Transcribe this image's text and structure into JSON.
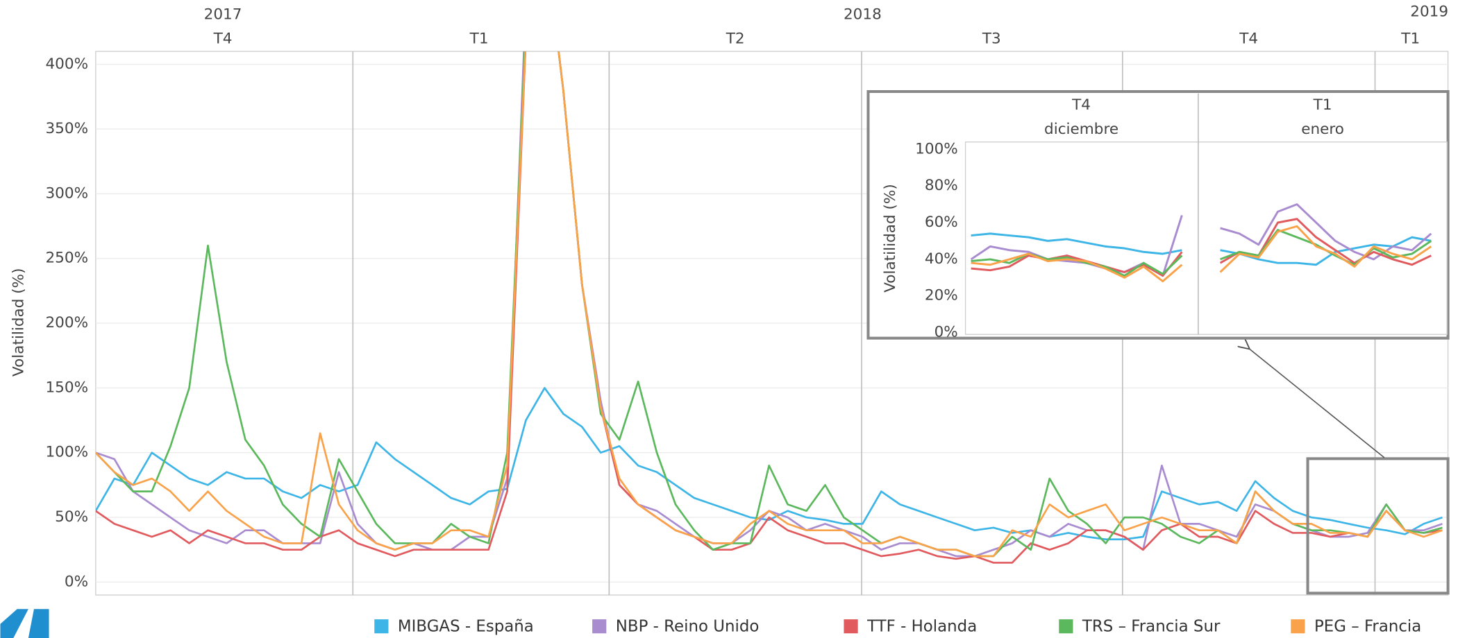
{
  "chart_data": [
    {
      "type": "line",
      "y_label": "Volatilidad (%)",
      "years": [
        "2017",
        "2018",
        "2019"
      ],
      "periods": [
        "T4",
        "T1",
        "T2",
        "T3",
        "T4",
        "T1"
      ],
      "categories": [
        null,
        null,
        null,
        null,
        null,
        null,
        null,
        null,
        null,
        null,
        null,
        null,
        null,
        null,
        null,
        null,
        null,
        null,
        null,
        null,
        null,
        null,
        null,
        null,
        null,
        null,
        null,
        null,
        null,
        null,
        null,
        null,
        null,
        null,
        null,
        null,
        null,
        null,
        null,
        null,
        null,
        null,
        null,
        null,
        null,
        null,
        null,
        null,
        null,
        null,
        null,
        null,
        null,
        null,
        null,
        null,
        null,
        null,
        null,
        null,
        null,
        null,
        null,
        null,
        null,
        null,
        null,
        null,
        null,
        null,
        null,
        null,
        null
      ],
      "ylim": [
        -10,
        410
      ],
      "yticks": [
        {
          "value": 0,
          "label": "0%"
        },
        {
          "value": 50,
          "label": "50%"
        },
        {
          "value": 100,
          "label": "100%"
        },
        {
          "value": 150,
          "label": "150%"
        },
        {
          "value": 200,
          "label": "200%"
        },
        {
          "value": 250,
          "label": "250%"
        },
        {
          "value": 300,
          "label": "300%"
        },
        {
          "value": 350,
          "label": "350%"
        },
        {
          "value": 400,
          "label": "400%"
        }
      ],
      "grid": true,
      "series": [
        {
          "name": "MIBGAS - España",
          "color": "#3db5e6",
          "values": [
            55,
            80,
            75,
            100,
            90,
            80,
            75,
            85,
            80,
            80,
            70,
            65,
            75,
            70,
            75,
            108,
            95,
            85,
            75,
            65,
            60,
            70,
            72,
            125,
            150,
            130,
            120,
            100,
            105,
            90,
            85,
            75,
            65,
            60,
            55,
            50,
            48,
            55,
            50,
            48,
            45,
            45,
            70,
            60,
            55,
            50,
            45,
            40,
            42,
            38,
            40,
            35,
            38,
            35,
            33,
            33,
            35,
            70,
            65,
            60,
            62,
            55,
            78,
            65,
            55,
            50,
            48,
            45,
            42,
            40,
            37,
            45,
            50
          ]
        },
        {
          "name": "NBP - Reino Unido",
          "color": "#a98bd0",
          "values": [
            100,
            95,
            70,
            60,
            50,
            40,
            35,
            30,
            40,
            40,
            30,
            30,
            30,
            85,
            45,
            30,
            25,
            30,
            25,
            25,
            35,
            35,
            80,
            450,
            500,
            380,
            230,
            140,
            75,
            60,
            55,
            45,
            35,
            30,
            30,
            40,
            55,
            50,
            40,
            45,
            40,
            35,
            25,
            30,
            30,
            25,
            20,
            20,
            25,
            30,
            40,
            35,
            45,
            40,
            40,
            35,
            25,
            90,
            45,
            45,
            40,
            35,
            60,
            55,
            45,
            40,
            35,
            35,
            38,
            60,
            40,
            40,
            45
          ]
        },
        {
          "name": "TTF - Holanda",
          "color": "#e05a5e",
          "values": [
            55,
            45,
            40,
            35,
            40,
            30,
            40,
            35,
            30,
            30,
            25,
            25,
            35,
            40,
            30,
            25,
            20,
            25,
            25,
            25,
            25,
            25,
            70,
            420,
            500,
            380,
            230,
            135,
            75,
            60,
            50,
            40,
            35,
            25,
            25,
            30,
            50,
            40,
            35,
            30,
            30,
            25,
            20,
            22,
            25,
            20,
            18,
            20,
            15,
            15,
            30,
            25,
            30,
            40,
            40,
            35,
            25,
            40,
            45,
            35,
            35,
            30,
            55,
            45,
            38,
            38,
            35,
            38,
            35,
            55,
            40,
            38,
            40
          ]
        },
        {
          "name": "TRS – Francia Sur",
          "color": "#5cb85c",
          "values": [
            100,
            85,
            70,
            70,
            105,
            150,
            260,
            170,
            110,
            90,
            60,
            45,
            35,
            95,
            70,
            45,
            30,
            30,
            30,
            45,
            35,
            30,
            100,
            430,
            500,
            380,
            230,
            130,
            110,
            155,
            100,
            60,
            40,
            25,
            30,
            30,
            90,
            60,
            55,
            75,
            50,
            40,
            30,
            35,
            30,
            25,
            25,
            20,
            20,
            35,
            25,
            80,
            55,
            45,
            30,
            50,
            50,
            45,
            35,
            30,
            40,
            30,
            70,
            55,
            45,
            40,
            40,
            38,
            35,
            60,
            40,
            38,
            42
          ]
        },
        {
          "name": "PEG – Francia",
          "color": "#f9a24a",
          "values": [
            100,
            85,
            75,
            80,
            70,
            55,
            70,
            55,
            45,
            35,
            30,
            30,
            115,
            60,
            40,
            30,
            25,
            30,
            30,
            40,
            40,
            35,
            90,
            420,
            500,
            380,
            230,
            135,
            80,
            60,
            50,
            40,
            35,
            30,
            30,
            45,
            55,
            45,
            40,
            40,
            40,
            30,
            30,
            35,
            30,
            25,
            25,
            20,
            20,
            40,
            35,
            60,
            50,
            55,
            60,
            40,
            45,
            50,
            45,
            40,
            40,
            30,
            70,
            55,
            45,
            45,
            38,
            38,
            35,
            55,
            40,
            35,
            40
          ]
        }
      ]
    },
    {
      "type": "line",
      "y_label": "Volatilidad (%)",
      "periods": [
        {
          "label": "T4",
          "month": "diciembre"
        },
        {
          "label": "T1",
          "month": "enero"
        }
      ],
      "categories": [
        null,
        null,
        null,
        null,
        null,
        null,
        null,
        null,
        null,
        null,
        null,
        null,
        null,
        null,
        null,
        null,
        null,
        null,
        null,
        null,
        null,
        null,
        null,
        null,
        null
      ],
      "ylim": [
        -1,
        104
      ],
      "yticks": [
        {
          "value": 0,
          "label": "0%"
        },
        {
          "value": 20,
          "label": "20%"
        },
        {
          "value": 40,
          "label": "40%"
        },
        {
          "value": 60,
          "label": "60%"
        },
        {
          "value": 80,
          "label": "80%"
        },
        {
          "value": 100,
          "label": "100%"
        }
      ],
      "series": [
        {
          "color": "#3db5e6",
          "values": [
            53,
            54,
            53,
            52,
            50,
            51,
            49,
            47,
            46,
            44,
            43,
            45,
            null,
            45,
            43,
            40,
            38,
            38,
            37,
            44,
            46,
            48,
            47,
            52,
            50
          ]
        },
        {
          "color": "#a98bd0",
          "values": [
            40,
            47,
            45,
            44,
            40,
            39,
            38,
            35,
            33,
            38,
            31,
            64,
            null,
            57,
            54,
            48,
            66,
            70,
            60,
            50,
            44,
            40,
            47,
            45,
            54
          ]
        },
        {
          "color": "#e05a5e",
          "values": [
            35,
            34,
            36,
            42,
            40,
            42,
            39,
            36,
            33,
            37,
            31,
            44,
            null,
            38,
            44,
            42,
            60,
            62,
            52,
            45,
            38,
            44,
            40,
            37,
            42
          ]
        },
        {
          "color": "#5cb85c",
          "values": [
            39,
            40,
            38,
            43,
            40,
            41,
            38,
            36,
            31,
            38,
            32,
            42,
            null,
            40,
            44,
            42,
            56,
            52,
            48,
            42,
            37,
            46,
            41,
            43,
            50
          ]
        },
        {
          "color": "#f9a24a",
          "values": [
            38,
            37,
            40,
            43,
            39,
            40,
            39,
            35,
            30,
            36,
            28,
            37,
            null,
            33,
            43,
            41,
            55,
            58,
            47,
            43,
            36,
            47,
            43,
            40,
            47
          ]
        }
      ]
    }
  ]
}
